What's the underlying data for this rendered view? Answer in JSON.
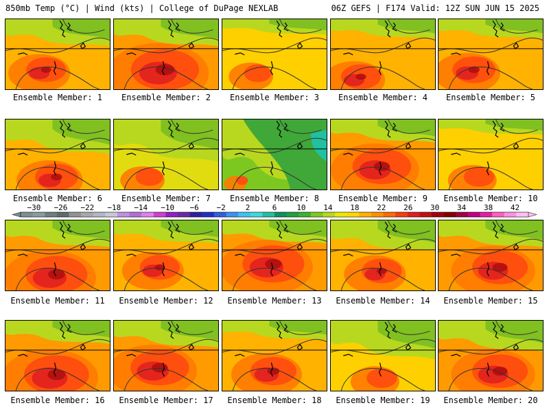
{
  "header": {
    "left_title": "850mb Temp (°C) | Wind (kts) | College of DuPage NEXLAB",
    "right_title": "06Z GEFS | F174 Valid: 12Z SUN JUN 15 2025"
  },
  "panel_label_prefix": "Ensemble Member: ",
  "members": [
    {
      "label": "Ensemble Member: 1",
      "style": "warm",
      "hot_x": 0.35,
      "hot_y": 0.75,
      "hot_strength": 0.55,
      "green_north": 0.35
    },
    {
      "label": "Ensemble Member: 2",
      "style": "hot",
      "hot_x": 0.45,
      "hot_y": 0.75,
      "hot_strength": 1.0,
      "green_north": 0.35
    },
    {
      "label": "Ensemble Member: 3",
      "style": "mild",
      "hot_x": 0.3,
      "hot_y": 0.8,
      "hot_strength": 0.35,
      "green_north": 0.2
    },
    {
      "label": "Ensemble Member: 4",
      "style": "warm",
      "hot_x": 0.25,
      "hot_y": 0.85,
      "hot_strength": 0.55,
      "green_north": 0.25
    },
    {
      "label": "Ensemble Member: 5",
      "style": "warm",
      "hot_x": 0.3,
      "hot_y": 0.75,
      "hot_strength": 0.6,
      "green_north": 0.25
    },
    {
      "label": "Ensemble Member: 6",
      "style": "warm",
      "hot_x": 0.45,
      "hot_y": 0.85,
      "hot_strength": 0.6,
      "green_north": 0.45
    },
    {
      "label": "Ensemble Member: 7",
      "style": "cool",
      "hot_x": 0.3,
      "hot_y": 0.85,
      "hot_strength": 0.35,
      "green_north": 0.55
    },
    {
      "label": "Ensemble Member: 8",
      "style": "cold",
      "hot_x": 0.15,
      "hot_y": 0.9,
      "hot_strength": 0.1,
      "green_north": 0.85
    },
    {
      "label": "Ensemble Member: 9",
      "style": "hot",
      "hot_x": 0.45,
      "hot_y": 0.7,
      "hot_strength": 0.85,
      "green_north": 0.3
    },
    {
      "label": "Ensemble Member: 10",
      "style": "mild",
      "hot_x": 0.35,
      "hot_y": 0.85,
      "hot_strength": 0.4,
      "green_north": 0.2
    },
    {
      "label": "Ensemble Member: 11",
      "style": "hot",
      "hot_x": 0.45,
      "hot_y": 0.8,
      "hot_strength": 0.9,
      "green_north": 0.35
    },
    {
      "label": "Ensemble Member: 12",
      "style": "warm",
      "hot_x": 0.4,
      "hot_y": 0.7,
      "hot_strength": 0.55,
      "green_north": 0.3
    },
    {
      "label": "Ensemble Member: 13",
      "style": "hot",
      "hot_x": 0.45,
      "hot_y": 0.65,
      "hot_strength": 0.9,
      "green_north": 0.3
    },
    {
      "label": "Ensemble Member: 14",
      "style": "warm",
      "hot_x": 0.45,
      "hot_y": 0.75,
      "hot_strength": 0.55,
      "green_north": 0.4
    },
    {
      "label": "Ensemble Member: 15",
      "style": "hot",
      "hot_x": 0.55,
      "hot_y": 0.7,
      "hot_strength": 0.8,
      "green_north": 0.35
    },
    {
      "label": "Ensemble Member: 16",
      "style": "hot",
      "hot_x": 0.45,
      "hot_y": 0.8,
      "hot_strength": 0.95,
      "green_north": 0.3
    },
    {
      "label": "Ensemble Member: 17",
      "style": "hot",
      "hot_x": 0.4,
      "hot_y": 0.7,
      "hot_strength": 0.85,
      "green_north": 0.35
    },
    {
      "label": "Ensemble Member: 18",
      "style": "warm",
      "hot_x": 0.45,
      "hot_y": 0.75,
      "hot_strength": 0.65,
      "green_north": 0.25
    },
    {
      "label": "Ensemble Member: 19",
      "style": "mild",
      "hot_x": 0.45,
      "hot_y": 0.85,
      "hot_strength": 0.4,
      "green_north": 0.5
    },
    {
      "label": "Ensemble Member: 20",
      "style": "hot",
      "hot_x": 0.55,
      "hot_y": 0.75,
      "hot_strength": 0.8,
      "green_north": 0.4
    }
  ],
  "colorbar": {
    "tick_labels": [
      "-30",
      "-26",
      "-22",
      "-18",
      "-14",
      "-10",
      "-6",
      "-2",
      "2",
      "6",
      "10",
      "14",
      "18",
      "22",
      "26",
      "30",
      "34",
      "38",
      "42"
    ],
    "min": -32,
    "max": 44,
    "step": 2,
    "colors": [
      "#7f8f8f",
      "#8c9c9c",
      "#6f7f7f",
      "#5d6b6b",
      "#939393",
      "#a8a8a8",
      "#b0b8c8",
      "#c8c8d8",
      "#c090e0",
      "#b070d8",
      "#e080f0",
      "#d040d0",
      "#9020c0",
      "#6a2aa8",
      "#3020a0",
      "#2030c0",
      "#3060e0",
      "#4090f0",
      "#40c0f0",
      "#40d8d8",
      "#20c0a0",
      "#109060",
      "#20a040",
      "#40b030",
      "#80c820",
      "#b8d820",
      "#e8e800",
      "#ffd800",
      "#ffb000",
      "#ff9000",
      "#ff6a00",
      "#f04010",
      "#e02020",
      "#c01010",
      "#a00010",
      "#800000",
      "#a00040",
      "#c00080",
      "#e020a0",
      "#ff60c0",
      "#ff90e0",
      "#ffc0f0"
    ]
  }
}
